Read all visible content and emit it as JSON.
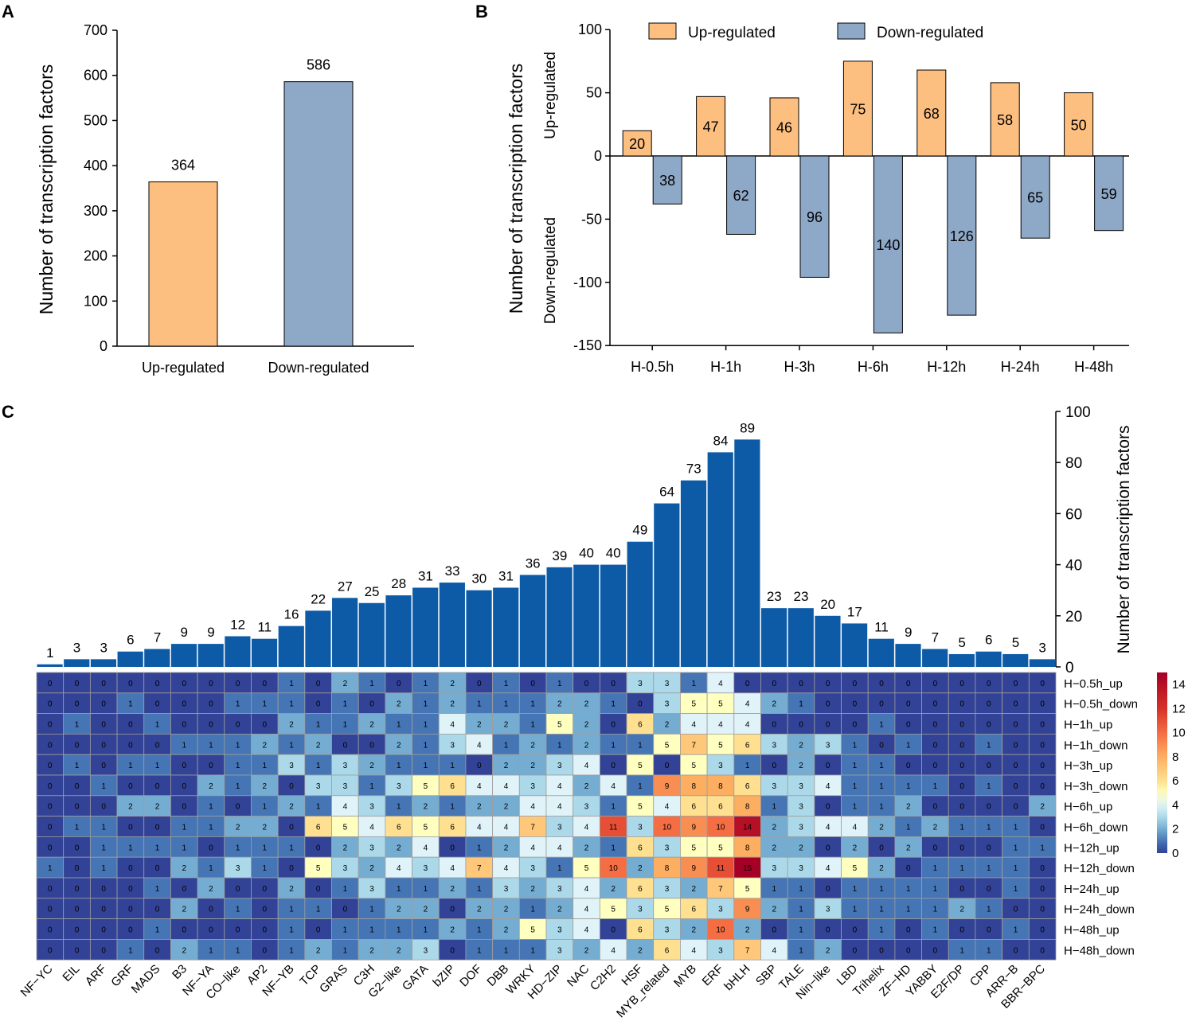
{
  "panels": {
    "a": "A",
    "b": "B",
    "c": "C"
  },
  "colors": {
    "up": "#FDBF80",
    "down": "#8EA9C8",
    "bar_c": "#0D5BA7",
    "scale": [
      "#323996",
      "#4575B4",
      "#74ADD1",
      "#ABD9E9",
      "#E0F3F8",
      "#FFFFBF",
      "#FEE090",
      "#FDAE61",
      "#F46D43",
      "#D73027",
      "#A50026"
    ]
  },
  "chart_data": [
    {
      "id": "A",
      "type": "bar",
      "categories": [
        "Up-regulated",
        "Down-regulated"
      ],
      "values": [
        364,
        586
      ],
      "data_labels": [
        "364",
        "586"
      ],
      "ylabel": "Number of transcription factors",
      "ylim": [
        0,
        700
      ],
      "yticks": [
        "0",
        "100",
        "200",
        "300",
        "400",
        "500",
        "600",
        "700"
      ],
      "grid": false
    },
    {
      "id": "B",
      "type": "bar",
      "categories": [
        "H-0.5h",
        "H-1h",
        "H-3h",
        "H-6h",
        "H-12h",
        "H-24h",
        "H-48h"
      ],
      "series": [
        {
          "name": "Up-regulated",
          "values": [
            20,
            47,
            46,
            75,
            68,
            58,
            50
          ],
          "labels": [
            "20",
            "47",
            "46",
            "75",
            "68",
            "58",
            "50"
          ]
        },
        {
          "name": "Down-regulated",
          "values": [
            -38,
            -62,
            -96,
            -140,
            -126,
            -65,
            -59
          ],
          "labels": [
            "38",
            "62",
            "96",
            "140",
            "126",
            "65",
            "59"
          ]
        }
      ],
      "ylabel": "Number of transcription factors",
      "ylabel_up": "Up-regulated",
      "ylabel_down": "Down-regulated",
      "ylim": [
        -150,
        100
      ],
      "yticks": [
        "100",
        "50",
        "0",
        "-50",
        "-100",
        "-150"
      ],
      "legend": "top"
    },
    {
      "id": "C_bar",
      "type": "bar",
      "categories": [
        "NF−YC",
        "EIL",
        "ARF",
        "GRF",
        "MADS",
        "B3",
        "NF−YA",
        "CO−like",
        "AP2",
        "NF−YB",
        "TCP",
        "GRAS",
        "C3H",
        "G2−like",
        "GATA",
        "bZIP",
        "DOF",
        "DBB",
        "WRKY",
        "HD−ZIP",
        "NAC",
        "C2H2",
        "HSF",
        "MYB_related",
        "MYB",
        "ERF",
        "bHLH",
        "SBP",
        "TALE",
        "Nin−like",
        "LBD",
        "Trihelix",
        "ZF−HD",
        "YABBY",
        "E2F/DP",
        "CPP",
        "ARR−B",
        "BBR−BPC"
      ],
      "values": [
        1,
        3,
        3,
        6,
        7,
        9,
        9,
        12,
        11,
        16,
        22,
        27,
        25,
        28,
        31,
        33,
        30,
        31,
        36,
        39,
        40,
        40,
        49,
        64,
        73,
        84,
        89,
        23,
        23,
        20,
        17,
        11,
        9,
        7,
        5,
        6,
        5,
        3
      ],
      "data_labels": [
        "1",
        "3",
        "3",
        "6",
        "7",
        "9",
        "9",
        "12",
        "11",
        "16",
        "22",
        "27",
        "25",
        "28",
        "31",
        "33",
        "30",
        "31",
        "36",
        "39",
        "40",
        "40",
        "49",
        "64",
        "73",
        "84",
        "89",
        "23",
        "23",
        "20",
        "17",
        "11",
        "9",
        "7",
        "5",
        "6",
        "5",
        "3"
      ],
      "ylabel": "Number of transcription factors",
      "ylim": [
        0,
        100
      ],
      "yticks": [
        "0",
        "20",
        "40",
        "60",
        "80",
        "100"
      ],
      "axis_position": "right"
    },
    {
      "id": "C_heatmap",
      "type": "heatmap",
      "rows": [
        "H−0.5h_up",
        "H−0.5h_down",
        "H−1h_up",
        "H−1h_down",
        "H−3h_up",
        "H−3h_down",
        "H−6h_up",
        "H−6h_down",
        "H−12h_up",
        "H−12h_down",
        "H−24h_up",
        "H−24h_down",
        "H−48h_up",
        "H−48h_down"
      ],
      "values": [
        [
          0,
          0,
          0,
          0,
          0,
          0,
          0,
          0,
          0,
          1,
          0,
          2,
          1,
          0,
          1,
          2,
          0,
          1,
          0,
          1,
          0,
          0,
          3,
          3,
          1,
          4,
          0,
          0,
          0,
          0,
          0,
          0,
          0,
          0,
          0,
          0,
          0,
          0
        ],
        [
          0,
          0,
          0,
          1,
          0,
          0,
          0,
          1,
          1,
          1,
          0,
          1,
          0,
          2,
          1,
          2,
          1,
          1,
          1,
          2,
          2,
          1,
          0,
          3,
          5,
          5,
          4,
          2,
          1,
          0,
          0,
          0,
          0,
          0,
          0,
          0,
          0,
          0
        ],
        [
          0,
          1,
          0,
          0,
          1,
          0,
          0,
          0,
          0,
          2,
          1,
          1,
          2,
          1,
          1,
          4,
          2,
          2,
          1,
          5,
          2,
          0,
          6,
          2,
          4,
          4,
          4,
          0,
          0,
          0,
          0,
          1,
          0,
          0,
          0,
          0,
          0,
          0
        ],
        [
          0,
          0,
          0,
          0,
          0,
          1,
          1,
          1,
          2,
          1,
          2,
          0,
          0,
          2,
          1,
          3,
          4,
          1,
          2,
          1,
          2,
          1,
          1,
          5,
          7,
          5,
          6,
          3,
          2,
          3,
          1,
          0,
          1,
          0,
          0,
          1,
          0,
          0
        ],
        [
          0,
          1,
          0,
          1,
          1,
          0,
          0,
          1,
          1,
          3,
          1,
          3,
          2,
          1,
          1,
          1,
          0,
          2,
          2,
          3,
          4,
          0,
          5,
          0,
          5,
          3,
          1,
          0,
          2,
          0,
          1,
          1,
          0,
          0,
          0,
          0,
          0,
          0
        ],
        [
          0,
          0,
          1,
          0,
          0,
          0,
          2,
          1,
          2,
          0,
          3,
          3,
          1,
          3,
          5,
          6,
          4,
          4,
          3,
          4,
          2,
          4,
          1,
          9,
          8,
          8,
          6,
          3,
          3,
          4,
          1,
          1,
          1,
          1,
          0,
          1,
          0,
          0
        ],
        [
          0,
          0,
          0,
          2,
          2,
          0,
          1,
          0,
          1,
          2,
          1,
          4,
          3,
          1,
          2,
          1,
          2,
          2,
          4,
          4,
          3,
          1,
          5,
          4,
          6,
          6,
          8,
          1,
          3,
          0,
          1,
          1,
          2,
          0,
          0,
          0,
          0,
          2
        ],
        [
          0,
          1,
          1,
          0,
          0,
          1,
          1,
          2,
          2,
          0,
          6,
          5,
          4,
          6,
          5,
          6,
          4,
          4,
          7,
          3,
          4,
          11,
          3,
          10,
          9,
          10,
          14,
          2,
          3,
          4,
          4,
          2,
          1,
          2,
          1,
          1,
          1,
          0
        ],
        [
          0,
          0,
          1,
          1,
          1,
          1,
          0,
          1,
          1,
          1,
          0,
          2,
          3,
          2,
          4,
          0,
          1,
          2,
          4,
          4,
          2,
          1,
          6,
          3,
          5,
          5,
          8,
          2,
          2,
          0,
          2,
          0,
          2,
          0,
          0,
          0,
          1,
          1
        ],
        [
          1,
          0,
          1,
          0,
          0,
          2,
          1,
          3,
          1,
          0,
          5,
          3,
          2,
          4,
          3,
          4,
          7,
          4,
          3,
          1,
          5,
          10,
          2,
          8,
          9,
          11,
          15,
          3,
          3,
          4,
          5,
          2,
          0,
          1,
          1,
          1,
          1,
          0
        ],
        [
          0,
          0,
          0,
          0,
          1,
          0,
          2,
          0,
          0,
          2,
          0,
          1,
          3,
          1,
          1,
          2,
          1,
          3,
          2,
          3,
          4,
          2,
          6,
          3,
          2,
          7,
          5,
          1,
          1,
          0,
          1,
          1,
          1,
          1,
          0,
          0,
          1,
          0
        ],
        [
          0,
          0,
          0,
          0,
          0,
          2,
          0,
          1,
          0,
          1,
          1,
          0,
          1,
          2,
          2,
          0,
          2,
          2,
          1,
          2,
          4,
          5,
          3,
          5,
          6,
          3,
          9,
          2,
          1,
          3,
          1,
          1,
          1,
          1,
          2,
          1,
          0,
          0
        ],
        [
          0,
          0,
          0,
          0,
          1,
          0,
          0,
          0,
          0,
          1,
          0,
          1,
          1,
          1,
          1,
          2,
          1,
          2,
          5,
          3,
          4,
          0,
          6,
          3,
          2,
          10,
          2,
          0,
          1,
          0,
          0,
          1,
          0,
          1,
          0,
          0,
          1,
          0
        ],
        [
          0,
          0,
          0,
          1,
          0,
          2,
          1,
          1,
          0,
          1,
          2,
          1,
          2,
          2,
          3,
          0,
          1,
          1,
          1,
          3,
          2,
          4,
          2,
          6,
          4,
          3,
          7,
          4,
          1,
          2,
          0,
          0,
          0,
          0,
          1,
          1,
          0,
          0
        ]
      ],
      "colorbar_ticks": [
        "0",
        "2",
        "4",
        "6",
        "8",
        "10",
        "12",
        "14"
      ],
      "vmin": 0,
      "vmax": 15
    }
  ]
}
